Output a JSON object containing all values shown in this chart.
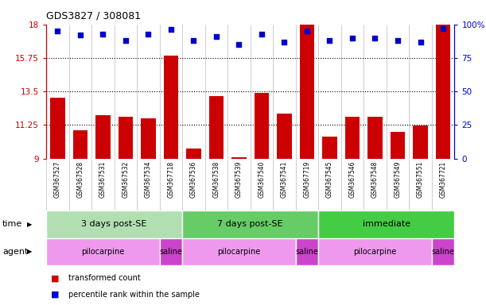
{
  "title": "GDS3827 / 308081",
  "samples": [
    "GSM367527",
    "GSM367528",
    "GSM367531",
    "GSM367532",
    "GSM367534",
    "GSM367718",
    "GSM367536",
    "GSM367538",
    "GSM367539",
    "GSM367540",
    "GSM367541",
    "GSM367719",
    "GSM367545",
    "GSM367546",
    "GSM367548",
    "GSM367549",
    "GSM367551",
    "GSM367721"
  ],
  "bar_values": [
    13.1,
    10.9,
    11.9,
    11.8,
    11.7,
    15.9,
    9.7,
    13.2,
    9.1,
    13.4,
    12.0,
    18.0,
    10.5,
    11.8,
    11.8,
    10.8,
    11.2,
    18.0
  ],
  "percentile_values": [
    95,
    92,
    93,
    88,
    93,
    96,
    88,
    91,
    85,
    93,
    87,
    95,
    88,
    90,
    90,
    88,
    87,
    97
  ],
  "bar_color": "#cc0000",
  "percentile_color": "#0000cc",
  "ylim_left": [
    9,
    18
  ],
  "ylim_right": [
    0,
    100
  ],
  "yticks_left": [
    9,
    11.25,
    13.5,
    15.75,
    18
  ],
  "yticks_right": [
    0,
    25,
    50,
    75,
    100
  ],
  "dotted_lines": [
    11.25,
    13.5,
    15.75
  ],
  "time_groups": [
    {
      "label": "3 days post-SE",
      "start": 0,
      "end": 5,
      "color": "#b2dfb2"
    },
    {
      "label": "7 days post-SE",
      "start": 6,
      "end": 11,
      "color": "#66cc66"
    },
    {
      "label": "immediate",
      "start": 12,
      "end": 17,
      "color": "#44cc44"
    }
  ],
  "agent_groups": [
    {
      "label": "pilocarpine",
      "start": 0,
      "end": 4,
      "color": "#ee99ee"
    },
    {
      "label": "saline",
      "start": 5,
      "end": 5,
      "color": "#cc44cc"
    },
    {
      "label": "pilocarpine",
      "start": 6,
      "end": 10,
      "color": "#ee99ee"
    },
    {
      "label": "saline",
      "start": 11,
      "end": 11,
      "color": "#cc44cc"
    },
    {
      "label": "pilocarpine",
      "start": 12,
      "end": 16,
      "color": "#ee99ee"
    },
    {
      "label": "saline",
      "start": 17,
      "end": 17,
      "color": "#cc44cc"
    }
  ],
  "legend_items": [
    {
      "label": "transformed count",
      "color": "#cc0000"
    },
    {
      "label": "percentile rank within the sample",
      "color": "#0000cc"
    }
  ],
  "bar_width": 0.65,
  "baseline": 9,
  "bg_color": "#f0f0f0"
}
